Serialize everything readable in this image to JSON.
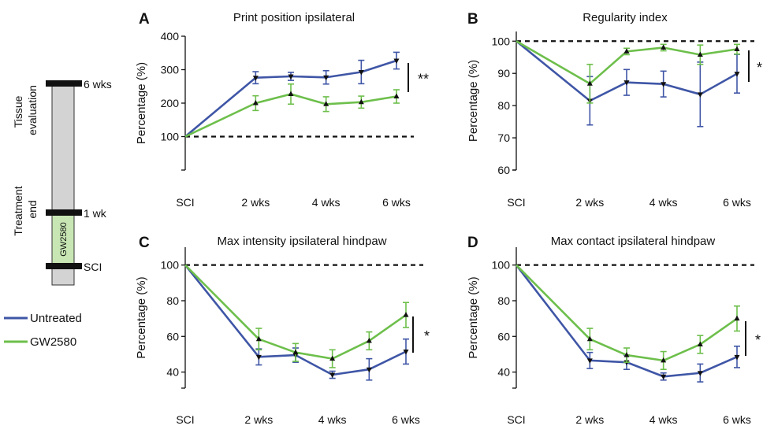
{
  "colors": {
    "untreated": "#3f56a6",
    "gw2580": "#6dbf4b",
    "bar_fill": "#d3d3d3",
    "gw_box": "#c7e6b3"
  },
  "timeline": {
    "labels": {
      "tissue": "Tissue evaluation",
      "treatment": "Treatment end",
      "six": "6 wks",
      "one": "1 wk",
      "sci": "SCI",
      "drug": "GW2580"
    }
  },
  "legend": {
    "untreated": "Untreated",
    "gw2580": "GW2580"
  },
  "chart_data": [
    {
      "letter": "A",
      "title": "Print position ipsilateral",
      "type": "line",
      "ylabel": "Percentage (%)",
      "yticks": [
        100,
        200,
        300,
        400
      ],
      "ylim": [
        0,
        400
      ],
      "x": [
        0,
        2,
        3,
        4,
        5,
        6
      ],
      "xticks": [
        {
          "x": 0,
          "label": "SCI"
        },
        {
          "x": 2,
          "label": "2 wks"
        },
        {
          "x": 4,
          "label": "4 wks"
        },
        {
          "x": 6,
          "label": "6 wks"
        }
      ],
      "baseline": 100,
      "significance": "**",
      "series": [
        {
          "name": "Untreated",
          "values": [
            100,
            276,
            280,
            277,
            293,
            327
          ],
          "errors": [
            0,
            18,
            12,
            20,
            35,
            25
          ]
        },
        {
          "name": "GW2580",
          "values": [
            100,
            200,
            227,
            197,
            203,
            220
          ],
          "errors": [
            0,
            22,
            30,
            22,
            18,
            20
          ]
        }
      ]
    },
    {
      "letter": "B",
      "title": "Regularity index",
      "type": "line",
      "ylabel": "Percentage (%)",
      "yticks": [
        60,
        70,
        80,
        90,
        100
      ],
      "ylim": [
        60,
        103
      ],
      "x": [
        0,
        2,
        3,
        4,
        5,
        6
      ],
      "xticks": [
        {
          "x": 0,
          "label": "SCI"
        },
        {
          "x": 2,
          "label": "2 wks"
        },
        {
          "x": 4,
          "label": "4 wks"
        },
        {
          "x": 6,
          "label": "6 wks"
        }
      ],
      "baseline": 100,
      "significance": "*",
      "series": [
        {
          "name": "Untreated",
          "values": [
            100,
            81.5,
            87.2,
            86.7,
            83.5,
            89.9
          ],
          "errors": [
            0,
            7.5,
            4,
            4,
            10,
            6
          ]
        },
        {
          "name": "GW2580",
          "values": [
            100,
            86.8,
            96.8,
            98,
            95.8,
            97.5
          ],
          "errors": [
            0,
            6,
            1,
            1,
            3,
            1.5
          ]
        }
      ]
    },
    {
      "letter": "C",
      "title": "Max intensity ipsilateral hindpaw",
      "type": "line",
      "ylabel": "Percentage (%)",
      "yticks": [
        40,
        60,
        80,
        100
      ],
      "ylim": [
        31,
        110
      ],
      "x": [
        0,
        2,
        3,
        4,
        5,
        6
      ],
      "xticks": [
        {
          "x": 0,
          "label": "SCI"
        },
        {
          "x": 2,
          "label": "2 wks"
        },
        {
          "x": 4,
          "label": "4 wks"
        },
        {
          "x": 6,
          "label": "6 wks"
        }
      ],
      "baseline": 100,
      "significance": "*",
      "series": [
        {
          "name": "Untreated",
          "values": [
            100,
            48.5,
            49.5,
            38.5,
            41.5,
            51.5
          ],
          "errors": [
            0,
            4.5,
            4,
            2,
            6,
            7
          ]
        },
        {
          "name": "GW2580",
          "values": [
            100,
            58.5,
            51,
            47.5,
            57.5,
            72
          ],
          "errors": [
            0,
            6,
            5,
            5,
            5,
            7
          ]
        }
      ]
    },
    {
      "letter": "D",
      "title": "Max contact ipsilateral hindpaw",
      "type": "line",
      "ylabel": "Percentage (%)",
      "yticks": [
        40,
        60,
        80,
        100
      ],
      "ylim": [
        31,
        110
      ],
      "x": [
        0,
        2,
        3,
        4,
        5,
        6
      ],
      "xticks": [
        {
          "x": 0,
          "label": "SCI"
        },
        {
          "x": 2,
          "label": "2 wks"
        },
        {
          "x": 4,
          "label": "4 wks"
        },
        {
          "x": 6,
          "label": "6 wks"
        }
      ],
      "baseline": 100,
      "significance": "*",
      "series": [
        {
          "name": "Untreated",
          "values": [
            100,
            46.5,
            45.5,
            37.5,
            39.5,
            48.5
          ],
          "errors": [
            0,
            4.5,
            4,
            2,
            5,
            6
          ]
        },
        {
          "name": "GW2580",
          "values": [
            100,
            58.5,
            49.5,
            46.5,
            55.5,
            70
          ],
          "errors": [
            0,
            6,
            4,
            5,
            5,
            7
          ]
        }
      ]
    }
  ]
}
